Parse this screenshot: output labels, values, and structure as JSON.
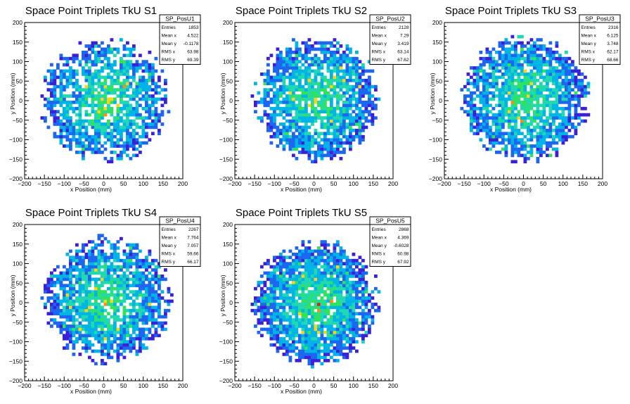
{
  "palette": [
    "#3b1fd9",
    "#1d67f0",
    "#00b4e6",
    "#21d8b0",
    "#2fe35a",
    "#ffd21a",
    "#ff8c10",
    "#e81e10"
  ],
  "chart_data": [
    {
      "type": "heatmap",
      "title": "Space Point Triplets TkU S1",
      "xlabel": "x Position (mm)",
      "ylabel": "y Position (mm)",
      "xlim": [
        -200,
        200
      ],
      "ylim": [
        -200,
        200
      ],
      "xticks": [
        "−200",
        "−150",
        "−100",
        "−50",
        "0",
        "50",
        "100",
        "150",
        "200"
      ],
      "yticks": [
        "200",
        "150",
        "100",
        "50",
        "0",
        "−50",
        "−100",
        "−150",
        "−200"
      ],
      "distribution": {
        "center_x": 5,
        "center_y": 0,
        "radius": 160,
        "bin_width": 8,
        "max_level": 7,
        "density": 0.72
      },
      "stats": {
        "name": "SP_PosU1",
        "rows": [
          [
            "Entries",
            "1853"
          ],
          [
            "Mean x",
            "4.522"
          ],
          [
            "Mean y",
            "-0.1178"
          ],
          [
            "RMS x",
            "63.98"
          ],
          [
            "RMS y",
            "69.39"
          ]
        ]
      }
    },
    {
      "type": "heatmap",
      "title": "Space Point Triplets TkU S2",
      "xlabel": "x Position (mm)",
      "ylabel": "y Position (mm)",
      "xlim": [
        -200,
        200
      ],
      "ylim": [
        -200,
        200
      ],
      "xticks": [
        "−200",
        "−150",
        "−100",
        "−50",
        "0",
        "50",
        "100",
        "150",
        "200"
      ],
      "yticks": [
        "200",
        "150",
        "100",
        "50",
        "0",
        "−50",
        "−100",
        "−150",
        "−200"
      ],
      "distribution": {
        "center_x": 7,
        "center_y": 3,
        "radius": 160,
        "bin_width": 8,
        "max_level": 7,
        "density": 0.78
      },
      "stats": {
        "name": "SP_PosU2",
        "rows": [
          [
            "Entries",
            "2128"
          ],
          [
            "Mean x",
            "7.29"
          ],
          [
            "Mean y",
            "3.419"
          ],
          [
            "RMS x",
            "63.14"
          ],
          [
            "RMS y",
            "67.62"
          ]
        ]
      }
    },
    {
      "type": "heatmap",
      "title": "Space Point Triplets TkU S3",
      "xlabel": "x Position (mm)",
      "ylabel": "y Position (mm)",
      "xlim": [
        -200,
        200
      ],
      "ylim": [
        -200,
        200
      ],
      "xticks": [
        "−200",
        "−150",
        "−100",
        "−50",
        "0",
        "50",
        "100",
        "150",
        "200"
      ],
      "yticks": [
        "200",
        "150",
        "100",
        "50",
        "0",
        "−50",
        "−100",
        "−150",
        "−200"
      ],
      "distribution": {
        "center_x": 6,
        "center_y": 4,
        "radius": 160,
        "bin_width": 8,
        "max_level": 7,
        "density": 0.8
      },
      "stats": {
        "name": "SP_PosU3",
        "rows": [
          [
            "Entries",
            "2316"
          ],
          [
            "Mean x",
            "6.125"
          ],
          [
            "Mean y",
            "3.748"
          ],
          [
            "RMS x",
            "62.17"
          ],
          [
            "RMS y",
            "68.66"
          ]
        ]
      }
    },
    {
      "type": "heatmap",
      "title": "Space Point Triplets TkU S4",
      "xlabel": "x Position (mm)",
      "ylabel": "y Position (mm)",
      "xlim": [
        -200,
        200
      ],
      "ylim": [
        -200,
        200
      ],
      "xticks": [
        "−200",
        "−150",
        "−100",
        "−50",
        "0",
        "50",
        "100",
        "150",
        "200"
      ],
      "yticks": [
        "200",
        "150",
        "100",
        "50",
        "0",
        "−50",
        "−100",
        "−150",
        "−200"
      ],
      "distribution": {
        "center_x": 8,
        "center_y": 7,
        "radius": 160,
        "bin_width": 8,
        "max_level": 7,
        "density": 0.8
      },
      "stats": {
        "name": "SP_PosU4",
        "rows": [
          [
            "Entries",
            "2267"
          ],
          [
            "Mean x",
            "7.764"
          ],
          [
            "Mean y",
            "7.057"
          ],
          [
            "RMS x",
            "59.66"
          ],
          [
            "RMS y",
            "66.17"
          ]
        ]
      }
    },
    {
      "type": "heatmap",
      "title": "Space Point Triplets TkU S5",
      "xlabel": "x Position (mm)",
      "ylabel": "y Position (mm)",
      "xlim": [
        -200,
        200
      ],
      "ylim": [
        -200,
        200
      ],
      "xticks": [
        "−200",
        "−150",
        "−100",
        "−50",
        "0",
        "50",
        "100",
        "150",
        "200"
      ],
      "yticks": [
        "200",
        "150",
        "100",
        "50",
        "0",
        "−50",
        "−100",
        "−150",
        "−200"
      ],
      "distribution": {
        "center_x": 4,
        "center_y": -1,
        "radius": 160,
        "bin_width": 8,
        "max_level": 7,
        "density": 0.86
      },
      "stats": {
        "name": "SP_PosU5",
        "rows": [
          [
            "Entries",
            "2868"
          ],
          [
            "Mean x",
            "4.369"
          ],
          [
            "Mean y",
            "-0.6028"
          ],
          [
            "RMS x",
            "60.98"
          ],
          [
            "RMS y",
            "67.92"
          ]
        ]
      }
    }
  ]
}
